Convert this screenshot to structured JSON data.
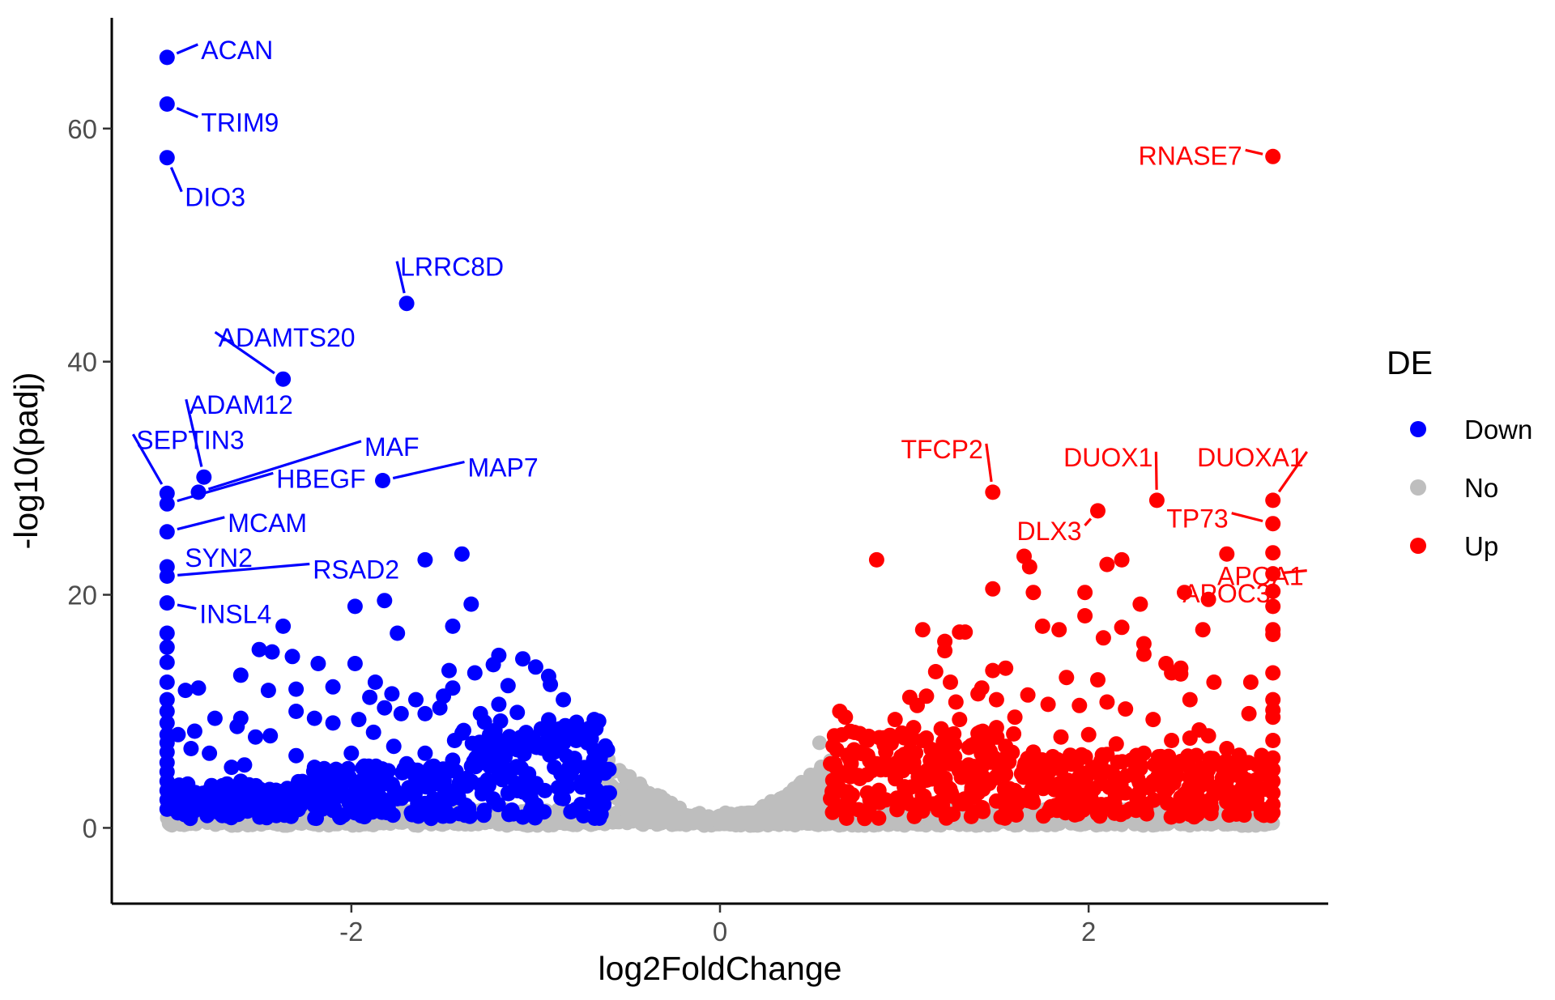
{
  "chart_data": {
    "type": "scatter",
    "subtype": "volcano",
    "xlabel": "log2FoldChange",
    "ylabel": "-log10(padj)",
    "xlim": [
      -3.3,
      3.3
    ],
    "ylim": [
      -6.5,
      69.5
    ],
    "x_ticks": [
      -2,
      0,
      2
    ],
    "x_tick_labels": [
      "-2",
      "0",
      "2"
    ],
    "y_ticks": [
      0,
      20,
      40,
      60
    ],
    "y_tick_labels": [
      "0",
      "20",
      "40",
      "60"
    ],
    "grid": false,
    "legend": {
      "title": "DE",
      "placement": "right",
      "entries": [
        {
          "label": "Down",
          "color": "#0000ff"
        },
        {
          "label": "No",
          "color": "#bebebe"
        },
        {
          "label": "Up",
          "color": "#ff0000"
        }
      ]
    },
    "colors": {
      "Down": "#0000ff",
      "No": "#bebebe",
      "Up": "#ff0000"
    },
    "labeled_genes": [
      {
        "gene": "ACAN",
        "x": -3.0,
        "y": 66.1,
        "group": "Down"
      },
      {
        "gene": "TRIM9",
        "x": -3.0,
        "y": 62.1,
        "group": "Down"
      },
      {
        "gene": "DIO3",
        "x": -3.0,
        "y": 57.5,
        "group": "Down"
      },
      {
        "gene": "LRRC8D",
        "x": -1.7,
        "y": 45.0,
        "group": "Down"
      },
      {
        "gene": "ADAMTS20",
        "x": -2.37,
        "y": 38.5,
        "group": "Down"
      },
      {
        "gene": "MAP7",
        "x": -1.83,
        "y": 29.8,
        "group": "Down"
      },
      {
        "gene": "ADAM12",
        "x": -2.8,
        "y": 30.1,
        "group": "Down"
      },
      {
        "gene": "MAF",
        "x": -2.83,
        "y": 28.8,
        "group": "Down"
      },
      {
        "gene": "SEPTIN3",
        "x": -3.0,
        "y": 28.7,
        "group": "Down"
      },
      {
        "gene": "HBEGF",
        "x": -3.0,
        "y": 27.8,
        "group": "Down"
      },
      {
        "gene": "MCAM",
        "x": -3.0,
        "y": 25.4,
        "group": "Down"
      },
      {
        "gene": "SYN2",
        "x": -3.0,
        "y": 22.4,
        "group": "Down"
      },
      {
        "gene": "RSAD2",
        "x": -3.0,
        "y": 21.6,
        "group": "Down"
      },
      {
        "gene": "INSL4",
        "x": -3.0,
        "y": 19.3,
        "group": "Down"
      },
      {
        "gene": "RNASE7",
        "x": 3.0,
        "y": 57.6,
        "group": "Up"
      },
      {
        "gene": "TFCP2",
        "x": 1.48,
        "y": 28.8,
        "group": "Up"
      },
      {
        "gene": "DUOX1",
        "x": 2.37,
        "y": 28.1,
        "group": "Up"
      },
      {
        "gene": "DUOXA1",
        "x": 3.0,
        "y": 28.1,
        "group": "Up"
      },
      {
        "gene": "DLX3",
        "x": 2.05,
        "y": 27.2,
        "group": "Up"
      },
      {
        "gene": "TP73",
        "x": 3.0,
        "y": 26.1,
        "group": "Up"
      },
      {
        "gene": "APOA1",
        "x": 3.0,
        "y": 21.8,
        "group": "Up"
      },
      {
        "gene": "APOC3",
        "x": 3.0,
        "y": 20.3,
        "group": "Up"
      }
    ],
    "points": {
      "Down": [
        [
          -3.0,
          66.1
        ],
        [
          -3.0,
          62.1
        ],
        [
          -3.0,
          57.5
        ],
        [
          -1.7,
          45.0
        ],
        [
          -2.37,
          38.5
        ],
        [
          -1.83,
          29.8
        ],
        [
          -2.8,
          30.1
        ],
        [
          -2.83,
          28.8
        ],
        [
          -3.0,
          28.7
        ],
        [
          -3.0,
          27.8
        ],
        [
          -3.0,
          25.4
        ],
        [
          -3.0,
          22.4
        ],
        [
          -3.0,
          21.6
        ],
        [
          -3.0,
          19.3
        ],
        [
          -1.6,
          23.0
        ],
        [
          -1.4,
          23.5
        ],
        [
          -1.35,
          19.2
        ],
        [
          -1.82,
          19.5
        ],
        [
          -1.98,
          19.0
        ],
        [
          -1.45,
          17.3
        ],
        [
          -1.75,
          16.7
        ],
        [
          -2.37,
          17.3
        ],
        [
          -3.0,
          16.7
        ],
        [
          -3.0,
          15.5
        ],
        [
          -3.0,
          14.2
        ],
        [
          -2.5,
          15.3
        ],
        [
          -2.43,
          15.1
        ],
        [
          -2.32,
          14.7
        ],
        [
          -2.18,
          14.1
        ],
        [
          -1.98,
          14.1
        ],
        [
          -2.6,
          13.1
        ],
        [
          -1.2,
          14.8
        ],
        [
          -1.23,
          14.0
        ],
        [
          -1.07,
          14.5
        ],
        [
          -1.0,
          13.8
        ],
        [
          -0.93,
          13.0
        ],
        [
          -0.92,
          12.3
        ],
        [
          -1.47,
          13.5
        ],
        [
          -1.33,
          13.3
        ],
        [
          -1.87,
          12.5
        ],
        [
          -2.1,
          12.1
        ],
        [
          -2.3,
          11.9
        ],
        [
          -2.45,
          11.8
        ],
        [
          -2.83,
          12.0
        ],
        [
          -2.9,
          11.8
        ],
        [
          -1.78,
          11.5
        ],
        [
          -1.65,
          11.0
        ],
        [
          -1.5,
          11.3
        ],
        [
          -1.15,
          12.2
        ],
        [
          -0.85,
          11.0
        ],
        [
          -3.0,
          12.5
        ],
        [
          -3.0,
          11.0
        ],
        [
          -3.0,
          10.0
        ],
        [
          -3.0,
          9.0
        ],
        [
          -3.0,
          8.0
        ],
        [
          -3.0,
          7.3
        ],
        [
          -3.0,
          6.5
        ],
        [
          -3.0,
          5.6
        ],
        [
          -3.0,
          4.8
        ],
        [
          -3.0,
          4.0
        ],
        [
          -3.0,
          3.2
        ],
        [
          -3.0,
          2.4
        ],
        [
          -3.0,
          1.6
        ],
        [
          -2.93,
          3.5
        ],
        [
          -2.87,
          2.5
        ],
        [
          -2.74,
          9.4
        ],
        [
          -2.62,
          8.7
        ],
        [
          -2.52,
          7.8
        ],
        [
          -2.44,
          7.9
        ],
        [
          -2.3,
          10.0
        ],
        [
          -2.2,
          9.4
        ],
        [
          -2.1,
          9.0
        ],
        [
          -1.96,
          9.3
        ],
        [
          -1.88,
          8.2
        ],
        [
          -1.82,
          10.3
        ],
        [
          -1.73,
          9.8
        ],
        [
          -1.6,
          9.8
        ],
        [
          -1.52,
          10.3
        ],
        [
          -2.77,
          6.4
        ],
        [
          -2.65,
          5.2
        ],
        [
          -2.58,
          5.4
        ],
        [
          -2.2,
          5.2
        ],
        [
          -2.06,
          4.1
        ],
        [
          -1.93,
          5.3
        ],
        [
          -1.77,
          7.0
        ],
        [
          -1.6,
          6.4
        ],
        [
          -1.44,
          7.5
        ],
        [
          -2.4,
          3.1
        ],
        [
          -2.32,
          2.4
        ],
        [
          -2.15,
          3.4
        ],
        [
          -1.88,
          3.3
        ],
        [
          -1.68,
          2.9
        ],
        [
          -2.8,
          2.0
        ],
        [
          -2.68,
          1.5
        ],
        [
          -2.5,
          1.8
        ],
        [
          -2.35,
          1.2
        ],
        [
          -2.2,
          1.9
        ],
        [
          -1.99,
          2.4
        ],
        [
          -1.8,
          1.7
        ],
        [
          -1.6,
          2.1
        ],
        [
          -1.42,
          2.7
        ],
        [
          -0.97,
          8.5
        ],
        [
          -0.87,
          8.5
        ],
        [
          -0.78,
          7.5
        ],
        [
          -0.7,
          8.0
        ],
        [
          -0.65,
          6.0
        ],
        [
          -0.62,
          5.0
        ],
        [
          -0.6,
          3.0
        ],
        [
          -0.63,
          2.0
        ],
        [
          -2.87,
          6.8
        ],
        [
          -2.94,
          8.0
        ],
        [
          -2.85,
          8.3
        ],
        [
          -2.6,
          9.4
        ],
        [
          -2.3,
          6.2
        ],
        [
          -2.0,
          6.4
        ],
        [
          -1.7,
          5.5
        ],
        [
          -1.55,
          4.6
        ],
        [
          -1.3,
          9.8
        ],
        [
          -1.2,
          10.6
        ],
        [
          -1.1,
          9.9
        ],
        [
          -1.3,
          6.2
        ],
        [
          -1.1,
          6.7
        ],
        [
          -0.9,
          6.5
        ],
        [
          -0.8,
          5.0
        ],
        [
          -0.75,
          3.5
        ],
        [
          -1.9,
          11.2
        ],
        [
          -1.45,
          12.0
        ],
        [
          -2.6,
          4.0
        ],
        [
          -2.45,
          2.7
        ],
        [
          -2.7,
          3.0
        ],
        [
          -1.25,
          5.3
        ],
        [
          -1.05,
          4.3
        ],
        [
          -0.95,
          3.2
        ],
        [
          -0.85,
          2.5
        ],
        [
          -1.15,
          3.0
        ],
        [
          -1.35,
          4.0
        ],
        [
          -1.5,
          3.5
        ],
        [
          -1.65,
          4.4
        ],
        [
          -1.8,
          4.9
        ],
        [
          -2.0,
          2.8
        ],
        [
          -2.1,
          1.5
        ],
        [
          -1.95,
          1.5
        ],
        [
          -1.75,
          2.5
        ],
        [
          -1.55,
          1.8
        ],
        [
          -1.0,
          1.8
        ],
        [
          -0.7,
          2.2
        ],
        [
          -0.68,
          4.2
        ],
        [
          -1.45,
          5.8
        ],
        [
          -1.25,
          8.0
        ],
        [
          -1.05,
          7.3
        ]
      ],
      "Up": [
        [
          3.0,
          57.6
        ],
        [
          1.48,
          28.8
        ],
        [
          2.37,
          28.1
        ],
        [
          3.0,
          28.1
        ],
        [
          2.05,
          27.2
        ],
        [
          3.0,
          26.1
        ],
        [
          3.0,
          23.6
        ],
        [
          2.75,
          23.5
        ],
        [
          1.65,
          23.3
        ],
        [
          2.18,
          23.0
        ],
        [
          2.1,
          22.6
        ],
        [
          1.68,
          22.4
        ],
        [
          0.85,
          23.0
        ],
        [
          3.0,
          21.8
        ],
        [
          3.0,
          20.3
        ],
        [
          2.52,
          20.2
        ],
        [
          1.48,
          20.5
        ],
        [
          1.7,
          20.2
        ],
        [
          1.98,
          20.2
        ],
        [
          2.28,
          19.2
        ],
        [
          2.65,
          19.6
        ],
        [
          3.0,
          19.0
        ],
        [
          1.98,
          18.2
        ],
        [
          1.75,
          17.3
        ],
        [
          1.84,
          17.0
        ],
        [
          2.18,
          17.2
        ],
        [
          3.0,
          17.0
        ],
        [
          3.0,
          16.6
        ],
        [
          1.1,
          17.0
        ],
        [
          1.3,
          16.8
        ],
        [
          1.33,
          16.8
        ],
        [
          2.62,
          17.0
        ],
        [
          2.08,
          16.3
        ],
        [
          1.22,
          16.0
        ],
        [
          1.22,
          15.2
        ],
        [
          2.3,
          15.8
        ],
        [
          2.3,
          14.9
        ],
        [
          2.42,
          14.1
        ],
        [
          2.45,
          13.3
        ],
        [
          2.5,
          13.2
        ],
        [
          2.5,
          13.7
        ],
        [
          1.17,
          13.4
        ],
        [
          1.48,
          13.5
        ],
        [
          1.55,
          13.7
        ],
        [
          1.88,
          12.9
        ],
        [
          2.05,
          12.7
        ],
        [
          2.68,
          12.5
        ],
        [
          2.88,
          12.5
        ],
        [
          3.0,
          13.3
        ],
        [
          3.0,
          11.0
        ],
        [
          3.0,
          10.1
        ],
        [
          3.0,
          9.5
        ],
        [
          2.87,
          9.8
        ],
        [
          2.55,
          11.0
        ],
        [
          2.2,
          10.2
        ],
        [
          1.03,
          11.2
        ],
        [
          1.07,
          10.5
        ],
        [
          1.12,
          11.3
        ],
        [
          1.28,
          10.8
        ],
        [
          1.4,
          11.5
        ],
        [
          1.5,
          11.0
        ],
        [
          1.67,
          11.4
        ],
        [
          1.78,
          10.6
        ],
        [
          1.95,
          10.5
        ],
        [
          2.1,
          10.8
        ],
        [
          0.65,
          10.0
        ],
        [
          0.68,
          9.5
        ],
        [
          0.8,
          7.5
        ],
        [
          0.75,
          6.5
        ],
        [
          0.6,
          5.5
        ],
        [
          0.62,
          4.0
        ],
        [
          0.6,
          2.5
        ],
        [
          0.62,
          1.5
        ],
        [
          0.9,
          5.0
        ],
        [
          1.0,
          6.3
        ],
        [
          1.1,
          7.5
        ],
        [
          1.2,
          8.5
        ],
        [
          1.3,
          9.3
        ],
        [
          1.4,
          8.1
        ],
        [
          1.55,
          7.0
        ],
        [
          1.7,
          6.5
        ],
        [
          1.85,
          7.8
        ],
        [
          2.0,
          8.0
        ],
        [
          2.15,
          7.2
        ],
        [
          2.3,
          6.4
        ],
        [
          2.45,
          7.5
        ],
        [
          2.55,
          7.7
        ],
        [
          2.65,
          7.9
        ],
        [
          2.75,
          6.8
        ],
        [
          2.82,
          5.5
        ],
        [
          3.0,
          7.5
        ],
        [
          3.0,
          6.0
        ],
        [
          3.0,
          5.0
        ],
        [
          3.0,
          4.0
        ],
        [
          3.0,
          3.0
        ],
        [
          3.0,
          2.0
        ],
        [
          3.0,
          1.3
        ],
        [
          2.9,
          3.8
        ],
        [
          2.85,
          2.5
        ],
        [
          2.7,
          3.3
        ],
        [
          2.6,
          2.0
        ],
        [
          2.5,
          2.6
        ],
        [
          2.4,
          3.5
        ],
        [
          2.3,
          2.0
        ],
        [
          2.2,
          3.0
        ],
        [
          2.1,
          2.0
        ],
        [
          2.0,
          3.5
        ],
        [
          1.9,
          2.5
        ],
        [
          1.8,
          3.6
        ],
        [
          1.7,
          2.2
        ],
        [
          1.6,
          3.2
        ],
        [
          1.5,
          2.3
        ],
        [
          1.4,
          3.0
        ],
        [
          1.3,
          2.1
        ],
        [
          1.2,
          3.4
        ],
        [
          1.1,
          2.6
        ],
        [
          1.0,
          3.5
        ],
        [
          0.9,
          2.4
        ],
        [
          0.8,
          3.0
        ],
        [
          0.7,
          2.0
        ],
        [
          0.75,
          4.5
        ],
        [
          0.85,
          5.5
        ],
        [
          0.95,
          4.5
        ],
        [
          1.05,
          5.2
        ],
        [
          1.15,
          4.2
        ],
        [
          1.25,
          5.5
        ],
        [
          1.35,
          4.6
        ],
        [
          1.45,
          5.8
        ],
        [
          1.55,
          4.6
        ],
        [
          1.65,
          5.2
        ],
        [
          1.75,
          4.0
        ],
        [
          1.85,
          5.0
        ],
        [
          1.95,
          4.4
        ],
        [
          2.05,
          5.3
        ],
        [
          2.15,
          4.2
        ],
        [
          2.25,
          4.8
        ],
        [
          2.35,
          4.0
        ],
        [
          2.45,
          5.2
        ],
        [
          2.55,
          4.3
        ],
        [
          2.65,
          5.0
        ],
        [
          2.75,
          4.1
        ],
        [
          1.2,
          6.8
        ],
        [
          1.35,
          6.9
        ],
        [
          1.5,
          8.6
        ],
        [
          1.6,
          9.5
        ],
        [
          1.25,
          12.5
        ],
        [
          1.42,
          12.0
        ],
        [
          2.35,
          9.3
        ],
        [
          2.6,
          8.4
        ],
        [
          1.9,
          6.0
        ],
        [
          2.1,
          6.3
        ],
        [
          2.5,
          5.7
        ],
        [
          1.05,
          8.6
        ],
        [
          0.95,
          9.3
        ],
        [
          1.6,
          1.6
        ]
      ],
      "No": []
    }
  }
}
